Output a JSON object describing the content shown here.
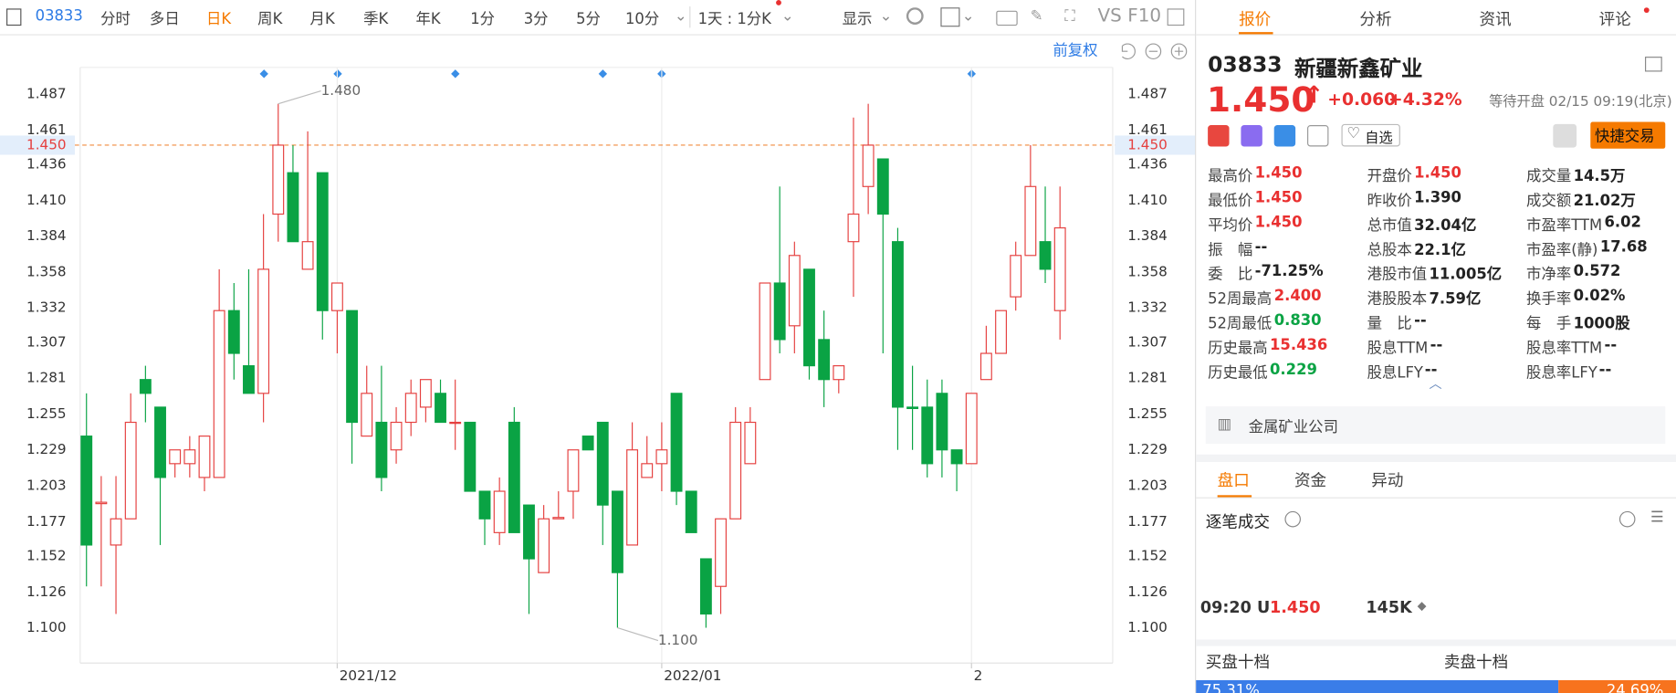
{
  "toolbar": {
    "code": "03833",
    "periods": [
      "分时",
      "多日",
      "日K",
      "周K",
      "月K",
      "季K",
      "年K",
      "1分",
      "3分",
      "5分",
      "10分"
    ],
    "interval": "1天 : 1分K",
    "display": "显示",
    "tools": [
      "VS",
      "F10"
    ]
  },
  "chart_header": {
    "adjust": "前复权"
  },
  "chart_data": {
    "type": "candlestick",
    "categories": [
      null,
      null,
      null,
      null,
      null,
      null,
      null,
      null,
      null,
      null,
      null,
      null,
      null,
      null,
      null,
      null,
      null,
      "2021/12",
      null,
      null,
      null,
      null,
      null,
      null,
      null,
      null,
      null,
      null,
      null,
      null,
      null,
      null,
      null,
      null,
      null,
      null,
      null,
      null,
      null,
      "2022/01",
      null,
      null,
      null,
      null,
      null,
      null,
      null,
      null,
      null,
      null,
      null,
      null,
      null,
      null,
      null,
      null,
      null,
      null,
      null,
      null,
      "2",
      null,
      null,
      null,
      null,
      null,
      null
    ],
    "open": [
      1.239,
      1.19,
      1.16,
      1.179,
      1.28,
      1.26,
      1.219,
      1.219,
      1.209,
      1.209,
      1.33,
      1.29,
      1.27,
      1.4,
      1.43,
      1.36,
      1.43,
      1.33,
      1.33,
      1.239,
      1.249,
      1.229,
      1.249,
      1.26,
      1.27,
      1.249,
      1.249,
      1.199,
      1.169,
      1.249,
      1.189,
      1.14,
      1.179,
      1.199,
      1.239,
      1.249,
      1.199,
      1.16,
      1.209,
      1.219,
      1.27,
      1.199,
      1.15,
      1.13,
      1.179,
      1.219,
      1.28,
      1.35,
      1.319,
      1.36,
      1.309,
      1.28,
      1.38,
      1.42,
      1.44,
      1.38,
      1.26,
      1.26,
      1.27,
      1.229,
      1.219,
      1.28,
      1.299,
      1.34,
      1.37,
      1.38,
      1.33
    ],
    "high": [
      1.27,
      1.21,
      1.21,
      1.27,
      1.29,
      1.26,
      1.229,
      1.239,
      1.239,
      1.36,
      1.35,
      1.36,
      1.4,
      1.48,
      1.45,
      1.46,
      1.43,
      1.35,
      1.33,
      1.29,
      1.29,
      1.26,
      1.28,
      1.28,
      1.28,
      1.28,
      1.249,
      1.199,
      1.209,
      1.26,
      1.189,
      1.189,
      1.199,
      1.229,
      1.239,
      1.249,
      1.199,
      1.249,
      1.239,
      1.249,
      1.27,
      1.199,
      1.15,
      1.179,
      1.26,
      1.26,
      1.35,
      1.42,
      1.38,
      1.36,
      1.33,
      1.29,
      1.47,
      1.48,
      1.44,
      1.39,
      1.29,
      1.28,
      1.28,
      1.229,
      1.27,
      1.319,
      1.33,
      1.38,
      1.45,
      1.42,
      1.42
    ],
    "low": [
      1.13,
      1.13,
      1.11,
      1.179,
      1.249,
      1.16,
      1.209,
      1.209,
      1.199,
      1.209,
      1.28,
      1.27,
      1.249,
      1.38,
      1.38,
      1.36,
      1.309,
      1.299,
      1.219,
      1.239,
      1.199,
      1.219,
      1.239,
      1.249,
      1.249,
      1.229,
      1.199,
      1.16,
      1.16,
      1.169,
      1.11,
      1.14,
      1.179,
      1.179,
      1.229,
      1.16,
      1.1,
      1.16,
      1.209,
      1.199,
      1.189,
      1.169,
      1.1,
      1.11,
      1.179,
      1.219,
      1.28,
      1.299,
      1.299,
      1.28,
      1.26,
      1.27,
      1.34,
      1.4,
      1.299,
      1.229,
      1.229,
      1.209,
      1.209,
      1.199,
      1.219,
      1.28,
      1.299,
      1.33,
      1.37,
      1.35,
      1.309
    ],
    "close": [
      1.16,
      1.191,
      1.179,
      1.249,
      1.27,
      1.209,
      1.229,
      1.229,
      1.239,
      1.33,
      1.299,
      1.27,
      1.36,
      1.45,
      1.38,
      1.38,
      1.33,
      1.35,
      1.249,
      1.27,
      1.209,
      1.249,
      1.27,
      1.28,
      1.249,
      1.249,
      1.199,
      1.179,
      1.199,
      1.169,
      1.15,
      1.179,
      1.18,
      1.229,
      1.229,
      1.189,
      1.14,
      1.229,
      1.219,
      1.229,
      1.199,
      1.169,
      1.11,
      1.179,
      1.249,
      1.249,
      1.35,
      1.309,
      1.37,
      1.29,
      1.28,
      1.29,
      1.4,
      1.45,
      1.4,
      1.26,
      1.259,
      1.219,
      1.229,
      1.219,
      1.27,
      1.299,
      1.33,
      1.37,
      1.42,
      1.36,
      1.39
    ],
    "up_color": "#e5403f",
    "down_color": "#0aa344",
    "ylim": [
      1.0744,
      1.5064
    ],
    "yticks": [
      1.487,
      1.461,
      1.436,
      {
        "value": 1.41,
        "label": "1.410"
      },
      1.384,
      1.358,
      1.332,
      1.307,
      1.281,
      1.255,
      1.229,
      1.203,
      1.177,
      1.152,
      1.126,
      {
        "value": 1.1,
        "label": "1.100"
      }
    ],
    "current_price": {
      "value": 1.45,
      "label": "1.450"
    },
    "max_mark": {
      "value": 1.48,
      "label": "1.480"
    },
    "min_mark": {
      "value": 1.1,
      "label": "1.100"
    }
  },
  "panel": {
    "tabs": [
      "报价",
      "分析",
      "资讯",
      "评论"
    ],
    "code": "03833",
    "name": "新疆新鑫矿业",
    "price": "1.450",
    "change": "+0.060",
    "change_pct": "+4.32%",
    "status": "等待开盘 02/15 09:19(北京)",
    "watch": "自选",
    "trade": "快捷交易",
    "stats": [
      [
        {
          "label": "最高价",
          "value": "1.450",
          "color": "#e93030"
        },
        {
          "label": "最低价",
          "value": "1.450",
          "color": "#e93030"
        },
        {
          "label": "平均价",
          "value": "1.450",
          "color": "#e93030"
        },
        {
          "label": "振　幅",
          "value": "--"
        },
        {
          "label": "委　比",
          "value": "-71.25%"
        },
        {
          "label": "52周最高",
          "value": "2.400",
          "color": "#e93030"
        },
        {
          "label": "52周最低",
          "value": "0.830",
          "color": "#0aa344"
        },
        {
          "label": "历史最高",
          "value": "15.436",
          "color": "#e93030"
        },
        {
          "label": "历史最低",
          "value": "0.229",
          "color": "#0aa344"
        }
      ],
      [
        {
          "label": "开盘价",
          "value": "1.450",
          "color": "#e93030"
        },
        {
          "label": "昨收价",
          "value": "1.390"
        },
        {
          "label": "总市值",
          "value": "32.04亿"
        },
        {
          "label": "总股本",
          "value": "22.1亿"
        },
        {
          "label": "港股市值",
          "value": "11.005亿"
        },
        {
          "label": "港股股本",
          "value": "7.59亿"
        },
        {
          "label": "量　比",
          "value": "--"
        },
        {
          "label": "股息TTM",
          "value": "--"
        },
        {
          "label": "股息LFY",
          "value": "--"
        }
      ],
      [
        {
          "label": "成交量",
          "value": "14.5万"
        },
        {
          "label": "成交额",
          "value": "21.02万"
        },
        {
          "label": "市盈率TTM",
          "value": "6.02"
        },
        {
          "label": "市盈率(静)",
          "value": "17.68"
        },
        {
          "label": "市净率",
          "value": "0.572"
        },
        {
          "label": "换手率",
          "value": "0.02%"
        },
        {
          "label": "每　手",
          "value": "1000股"
        },
        {
          "label": "股息率TTM",
          "value": "--"
        },
        {
          "label": "股息率LFY",
          "value": "--"
        }
      ]
    ],
    "industry": "金属矿业公司",
    "subtabs": [
      "盘口",
      "资金",
      "异动"
    ],
    "ticks_title": "逐笔成交",
    "trade_row": {
      "time": "09:20 U",
      "price": "1.450",
      "volume": "145K"
    },
    "book": {
      "buy_title": "买盘十档",
      "sell_title": "卖盘十档",
      "buy": {
        "value": 75.31,
        "label": "75.31%"
      },
      "sell": {
        "value": 24.69,
        "label": "24.69%"
      }
    }
  }
}
